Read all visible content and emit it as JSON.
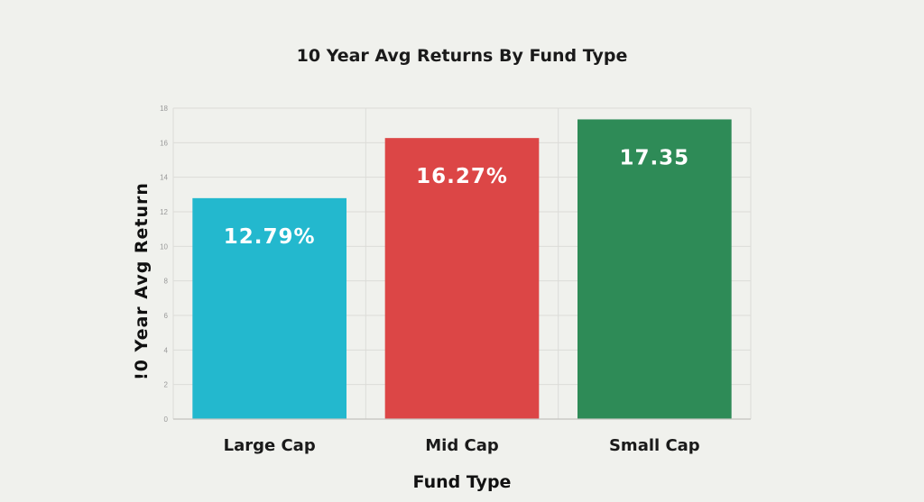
{
  "chart_data": {
    "type": "bar",
    "title": "10 Year Avg Returns By Fund Type",
    "xlabel": "Fund Type",
    "ylabel": "!0 Year Avg Return",
    "categories": [
      "Large Cap",
      "Mid Cap",
      "Small Cap"
    ],
    "values": [
      12.79,
      16.27,
      17.35
    ],
    "data_labels": [
      "12.79%",
      "16.27%",
      "17.35"
    ],
    "colors": [
      "#23b8ce",
      "#dc4646",
      "#2e8b57"
    ],
    "ylim": [
      0,
      18
    ],
    "yticks": [
      "0",
      "2",
      "4",
      "6",
      "8",
      "10",
      "12",
      "14",
      "16",
      "18"
    ],
    "grid": true,
    "legend": "none"
  }
}
